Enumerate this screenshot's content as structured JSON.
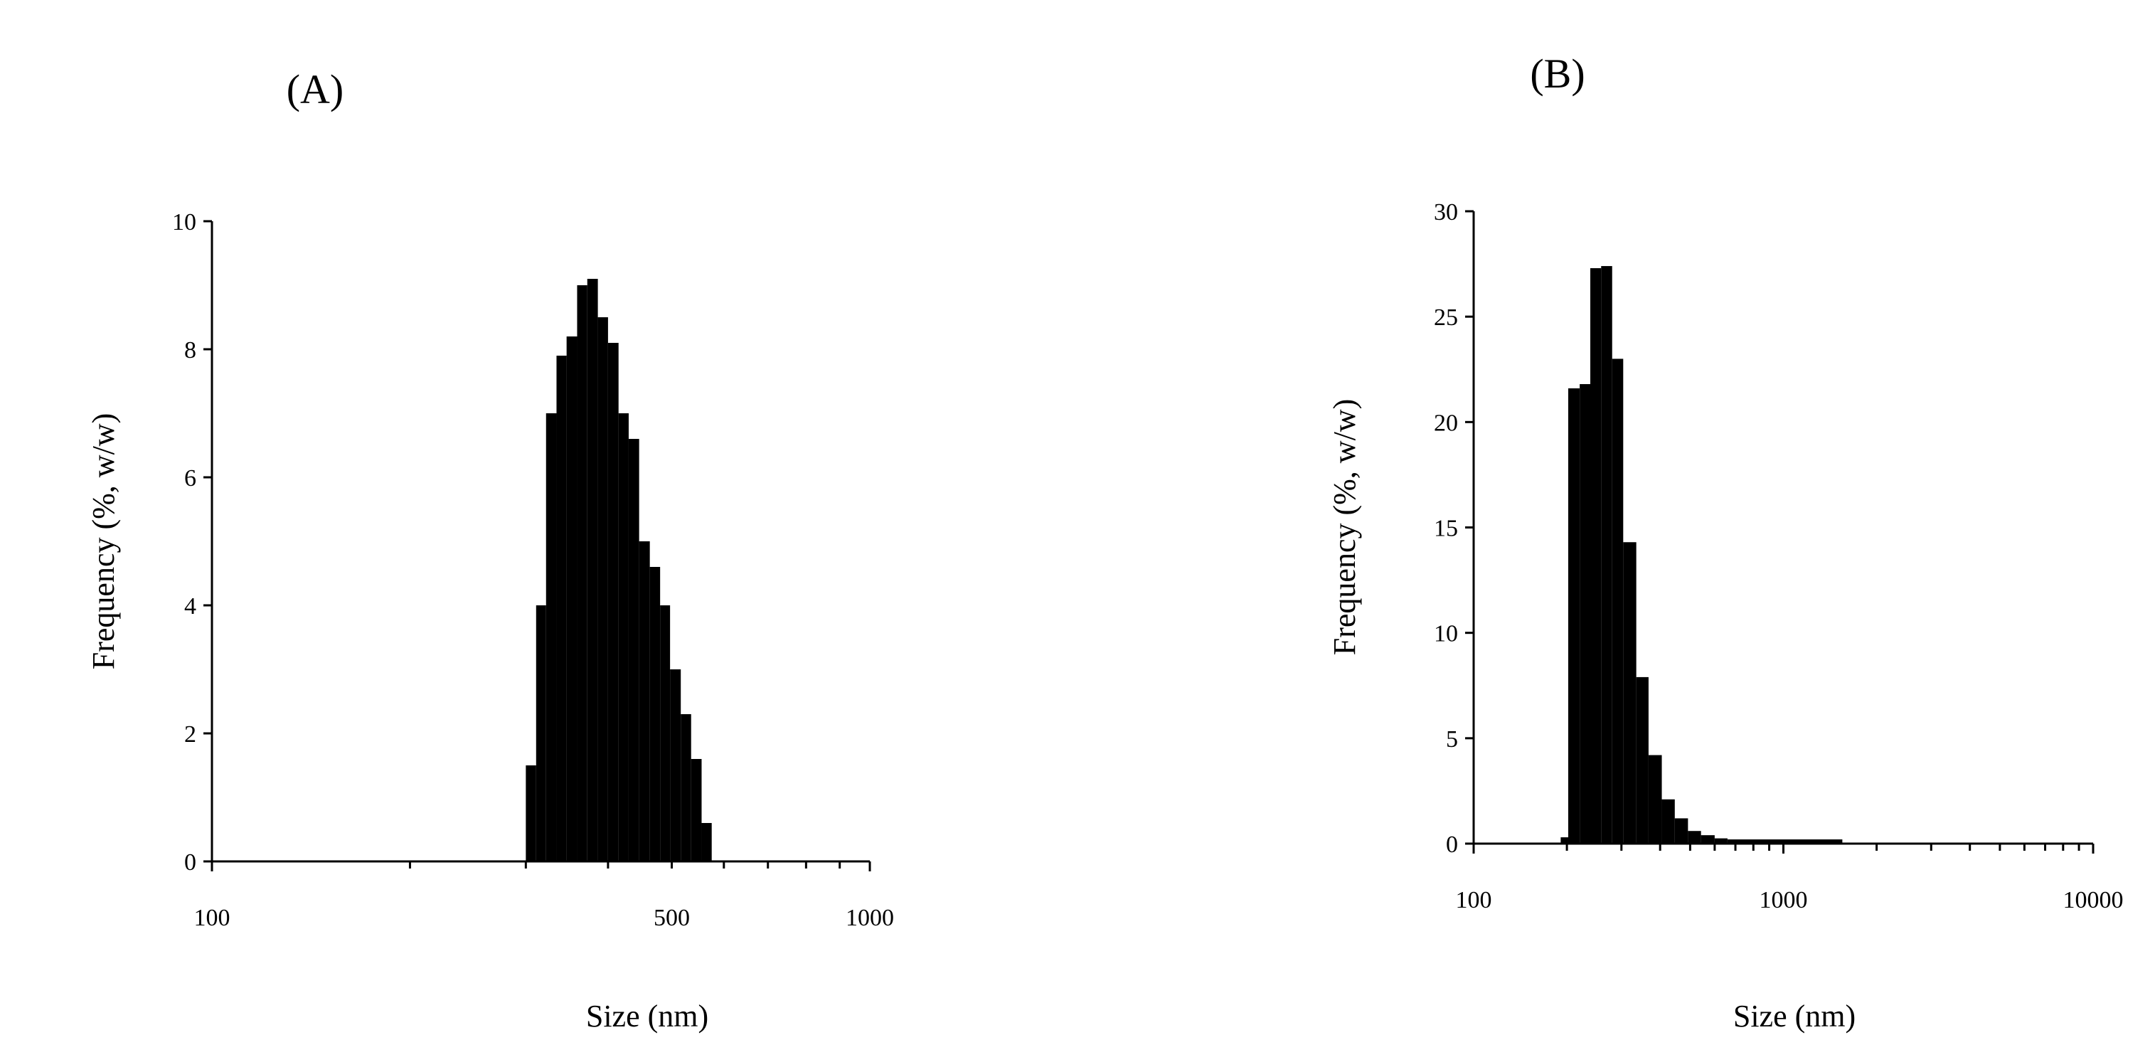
{
  "chart_data": [
    {
      "panel_label": "(A)",
      "type": "bar",
      "xlabel": "Size (nm)",
      "ylabel": "Frequency (%, w/w)",
      "x_scale": "log",
      "xlim": [
        100,
        1000
      ],
      "ylim": [
        0,
        10
      ],
      "x_tick_labels": [
        "100",
        "500",
        "1000"
      ],
      "x_tick_values": [
        100,
        500,
        1000
      ],
      "y_ticks": [
        0,
        2,
        4,
        6,
        8,
        10
      ],
      "grid": false,
      "legend": "none",
      "bins": [
        {
          "x0": 300,
          "x1": 311,
          "value": 1.5
        },
        {
          "x0": 311,
          "x1": 322,
          "value": 4.0
        },
        {
          "x0": 322,
          "x1": 334,
          "value": 7.0
        },
        {
          "x0": 334,
          "x1": 346,
          "value": 7.9
        },
        {
          "x0": 346,
          "x1": 359,
          "value": 8.2
        },
        {
          "x0": 359,
          "x1": 372,
          "value": 9.0
        },
        {
          "x0": 372,
          "x1": 386,
          "value": 9.1
        },
        {
          "x0": 386,
          "x1": 400,
          "value": 8.5
        },
        {
          "x0": 400,
          "x1": 415,
          "value": 8.1
        },
        {
          "x0": 415,
          "x1": 430,
          "value": 7.0
        },
        {
          "x0": 430,
          "x1": 446,
          "value": 6.6
        },
        {
          "x0": 446,
          "x1": 463,
          "value": 5.0
        },
        {
          "x0": 463,
          "x1": 480,
          "value": 4.6
        },
        {
          "x0": 480,
          "x1": 497,
          "value": 4.0
        },
        {
          "x0": 497,
          "x1": 516,
          "value": 3.0
        },
        {
          "x0": 516,
          "x1": 535,
          "value": 2.3
        },
        {
          "x0": 535,
          "x1": 555,
          "value": 1.6
        },
        {
          "x0": 555,
          "x1": 575,
          "value": 0.6
        }
      ]
    },
    {
      "panel_label": "(B)",
      "type": "bar",
      "xlabel": "Size (nm)",
      "ylabel": "Frequency (%, w/w)",
      "x_scale": "log",
      "xlim": [
        100,
        10000
      ],
      "ylim": [
        0,
        30
      ],
      "x_tick_labels": [
        "100",
        "1000",
        "10000"
      ],
      "x_tick_values": [
        100,
        1000,
        10000
      ],
      "y_ticks": [
        0,
        5,
        10,
        15,
        20,
        25,
        30
      ],
      "grid": false,
      "legend": "none",
      "bins": [
        {
          "x0": 191,
          "x1": 202,
          "value": 0.3
        },
        {
          "x0": 202,
          "x1": 220,
          "value": 21.6
        },
        {
          "x0": 220,
          "x1": 238,
          "value": 21.8
        },
        {
          "x0": 238,
          "x1": 258,
          "value": 27.3
        },
        {
          "x0": 258,
          "x1": 280,
          "value": 27.4
        },
        {
          "x0": 280,
          "x1": 304,
          "value": 23.0
        },
        {
          "x0": 304,
          "x1": 335,
          "value": 14.3
        },
        {
          "x0": 335,
          "x1": 367,
          "value": 7.9
        },
        {
          "x0": 367,
          "x1": 405,
          "value": 4.2
        },
        {
          "x0": 405,
          "x1": 446,
          "value": 2.1
        },
        {
          "x0": 446,
          "x1": 492,
          "value": 1.2
        },
        {
          "x0": 492,
          "x1": 542,
          "value": 0.6
        },
        {
          "x0": 542,
          "x1": 600,
          "value": 0.4
        },
        {
          "x0": 600,
          "x1": 660,
          "value": 0.25
        },
        {
          "x0": 660,
          "x1": 1550,
          "value": 0.2
        }
      ]
    }
  ]
}
